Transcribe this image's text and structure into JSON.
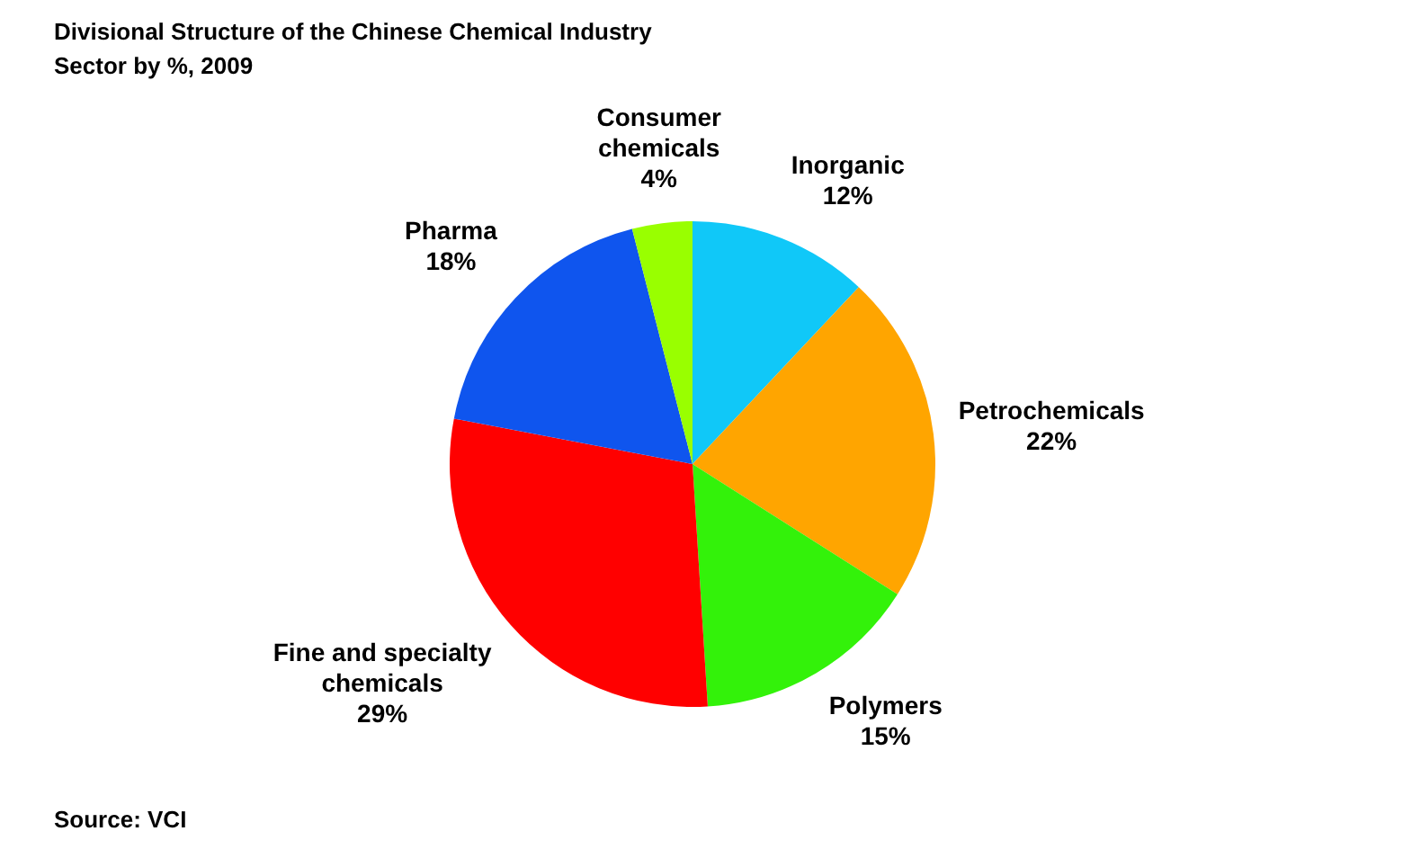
{
  "chart_data": {
    "type": "pie",
    "title": "Divisional Structure of the Chinese Chemical Industry Sector by %, 2009",
    "categories": [
      "Inorganic",
      "Petrochemicals",
      "Polymers",
      "Fine and specialty chemicals",
      "Pharma",
      "Consumer chemicals"
    ],
    "values": [
      12,
      22,
      15,
      29,
      18,
      4
    ],
    "value_labels": [
      "12%",
      "22%",
      "15%",
      "29%",
      "18%",
      "4%"
    ],
    "colors": [
      "#10c8f8",
      "#ffa500",
      "#33f20a",
      "#ff0000",
      "#0f55ee",
      "#99ff00"
    ],
    "annotations": [
      "Source: VCI"
    ]
  }
}
